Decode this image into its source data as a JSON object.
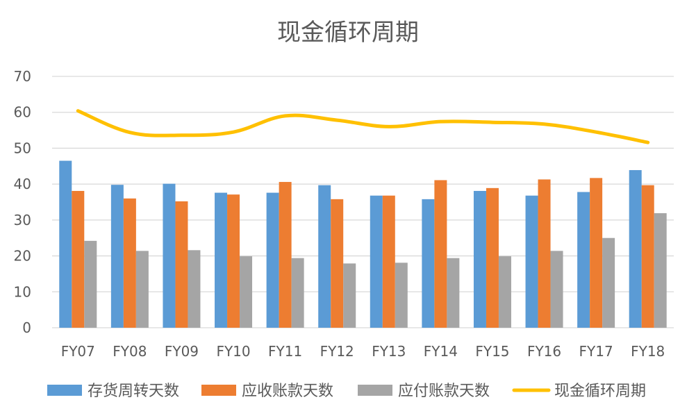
{
  "chart_data": {
    "type": "bar",
    "title": "现金循环周期",
    "xlabel": "",
    "ylabel": "",
    "categories": [
      "FY07",
      "FY08",
      "FY09",
      "FY10",
      "FY11",
      "FY12",
      "FY13",
      "FY14",
      "FY15",
      "FY16",
      "FY17",
      "FY18"
    ],
    "ylim": [
      0,
      70
    ],
    "yticks": [
      0,
      10,
      20,
      30,
      40,
      50,
      60,
      70
    ],
    "grid": true,
    "legend_position": "bottom",
    "series": [
      {
        "name": "存货周转天数",
        "type": "bar",
        "color": "#5B9BD5",
        "values": [
          46.5,
          39.8,
          40.1,
          37.6,
          37.6,
          39.7,
          36.8,
          35.8,
          38.1,
          36.8,
          37.8,
          43.9
        ]
      },
      {
        "name": "应收账款天数",
        "type": "bar",
        "color": "#ED7D31",
        "values": [
          38.1,
          36.0,
          35.2,
          37.1,
          40.6,
          35.8,
          36.8,
          41.1,
          38.9,
          41.3,
          41.7,
          39.7
        ]
      },
      {
        "name": "应付账款天数",
        "type": "bar",
        "color": "#A5A5A5",
        "values": [
          24.2,
          21.4,
          21.6,
          19.9,
          19.4,
          17.9,
          18.1,
          19.4,
          19.9,
          21.4,
          25.0,
          31.9
        ]
      },
      {
        "name": "现金循环周期",
        "type": "line",
        "color": "#FFC000",
        "values": [
          60.4,
          54.4,
          53.6,
          54.5,
          59.0,
          57.8,
          56.0,
          57.4,
          57.2,
          56.7,
          54.5,
          51.6
        ]
      }
    ]
  }
}
